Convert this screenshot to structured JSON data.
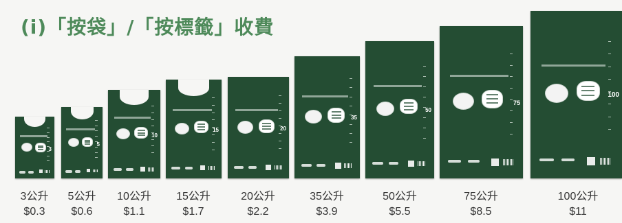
{
  "title": "(i)「按袋」/「按標籤」收費",
  "bags": [
    {
      "size": "3公升",
      "price": "$0.3",
      "capacity": "3"
    },
    {
      "size": "5公升",
      "price": "$0.6",
      "capacity": "5"
    },
    {
      "size": "10公升",
      "price": "$1.1",
      "capacity": "10"
    },
    {
      "size": "15公升",
      "price": "$1.7",
      "capacity": "15"
    },
    {
      "size": "20公升",
      "price": "$2.2",
      "capacity": "20"
    },
    {
      "size": "35公升",
      "price": "$3.9",
      "capacity": "35"
    },
    {
      "size": "50公升",
      "price": "$5.5",
      "capacity": "50"
    },
    {
      "size": "75公升",
      "price": "$8.5",
      "capacity": "75"
    },
    {
      "size": "100公升",
      "price": "$11",
      "capacity": "100"
    }
  ],
  "colors": {
    "bag": "#244d33",
    "title": "#4e8a5a",
    "text": "#333333"
  }
}
